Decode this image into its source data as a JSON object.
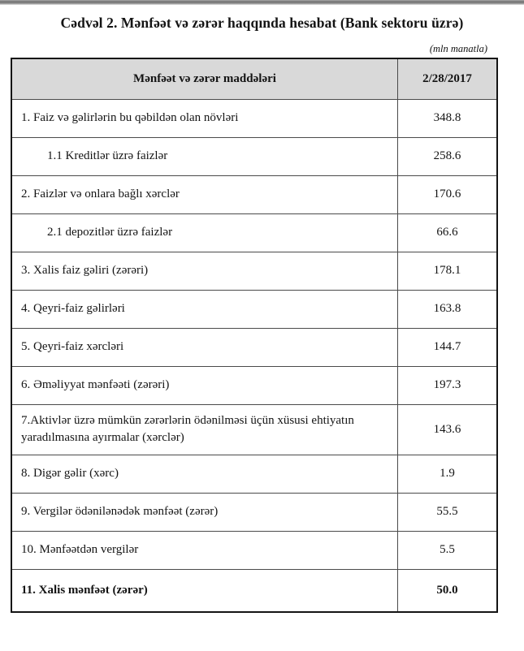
{
  "page": {
    "title": "Cədvəl 2. Mənfəət və zərər haqqında hesabat (Bank sektoru üzrə)",
    "unit_note": "(mln manatla)"
  },
  "table": {
    "columns": {
      "items": "Mənfəət və zərər maddələri",
      "date": "2/28/2017"
    },
    "rows": [
      {
        "label": "1. Faiz və gəlirlərin bu qəbildən olan növləri",
        "value": "348.8",
        "indent": false,
        "bold": false,
        "tall": false
      },
      {
        "label": "1.1 Kreditlər üzrə faizlər",
        "value": "258.6",
        "indent": true,
        "bold": false,
        "tall": false
      },
      {
        "label": "2. Faizlər və onlara bağlı xərclər",
        "value": "170.6",
        "indent": false,
        "bold": false,
        "tall": false
      },
      {
        "label": "2.1 depozitlər üzrə faizlər",
        "value": "66.6",
        "indent": true,
        "bold": false,
        "tall": false
      },
      {
        "label": "3. Xalis faiz gəliri (zərəri)",
        "value": "178.1",
        "indent": false,
        "bold": false,
        "tall": false
      },
      {
        "label": "4. Qeyri-faiz gəlirləri",
        "value": "163.8",
        "indent": false,
        "bold": false,
        "tall": false
      },
      {
        "label": "5. Qeyri-faiz xərcləri",
        "value": "144.7",
        "indent": false,
        "bold": false,
        "tall": false
      },
      {
        "label": "6. Əməliyyat mənfəəti (zərəri)",
        "value": "197.3",
        "indent": false,
        "bold": false,
        "tall": false
      },
      {
        "label": "7.Aktivlər üzrə mümkün zərərlərin ödənilməsi üçün xüsusi ehtiyatın yaradılmasına ayırmalar (xərclər)",
        "value": "143.6",
        "indent": false,
        "bold": false,
        "tall": true
      },
      {
        "label": "8. Digər gəlir (xərc)",
        "value": "1.9",
        "indent": false,
        "bold": false,
        "tall": false
      },
      {
        "label": "9. Vergilər ödənilənədək mənfəət (zərər)",
        "value": "55.5",
        "indent": false,
        "bold": false,
        "tall": false
      },
      {
        "label": "10. Mənfəətdən vergilər",
        "value": "5.5",
        "indent": false,
        "bold": false,
        "tall": false
      },
      {
        "label": "11. Xalis mənfəət (zərər)",
        "value": "50.0",
        "indent": false,
        "bold": true,
        "tall": false
      }
    ]
  },
  "colors": {
    "header_bg": "#d9d9d9",
    "outer_border": "#141414",
    "inner_border": "#4a4a4a",
    "top_bar": "#8f8f8f"
  }
}
